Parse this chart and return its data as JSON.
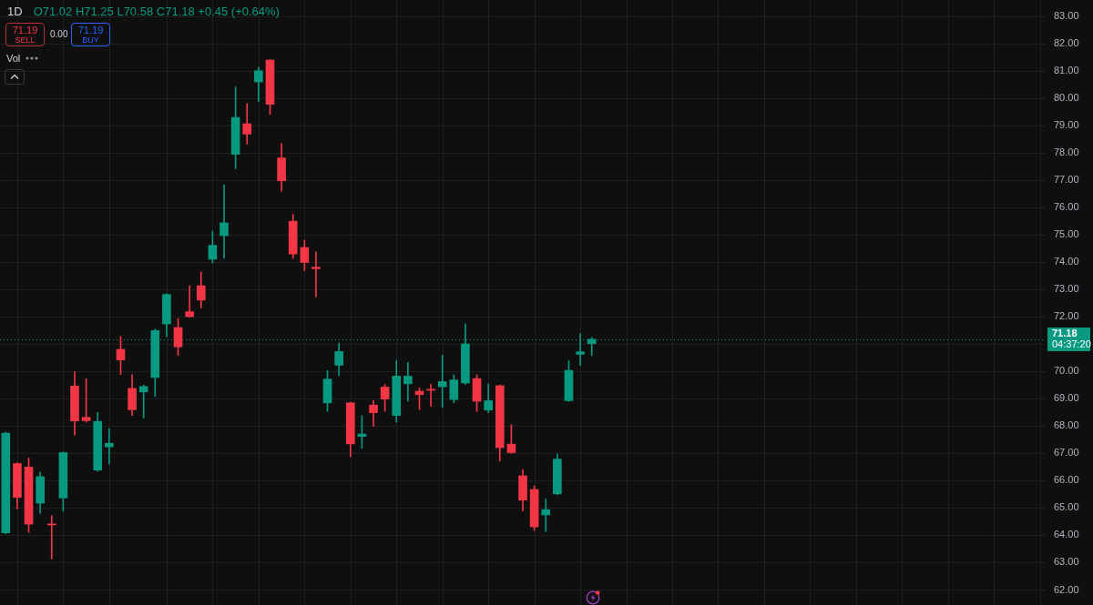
{
  "chart_data": {
    "type": "candlestick",
    "title": "1D",
    "subtitle": "O71.02 H71.25 L70.58 C71.18 +0.45 (+0.64%)",
    "categories": [
      null,
      null,
      null,
      null,
      null,
      null,
      null,
      null,
      null,
      null,
      null,
      null,
      null,
      null,
      null,
      null,
      null,
      null,
      null,
      null,
      null,
      null,
      null,
      null,
      null,
      null,
      null,
      null,
      null,
      null,
      null,
      null,
      null,
      null,
      null,
      null,
      null,
      null,
      null,
      null,
      null,
      null,
      null,
      null,
      null,
      null,
      null,
      null,
      null,
      null,
      null,
      null,
      null,
      null,
      null,
      null,
      null,
      null,
      null,
      null,
      null,
      null,
      null,
      null,
      null,
      null,
      null,
      null,
      null,
      null,
      null,
      null,
      null,
      null,
      null,
      null,
      null,
      null,
      null,
      null,
      null,
      null,
      null,
      null,
      null,
      null,
      null,
      null,
      null,
      null,
      null
    ],
    "ohlc": [
      [
        64.09,
        67.78,
        64.05,
        67.74
      ],
      [
        66.63,
        66.66,
        64.97,
        65.39
      ],
      [
        66.5,
        66.83,
        64.11,
        64.41
      ],
      [
        65.18,
        66.31,
        64.81,
        66.15
      ],
      [
        64.42,
        64.72,
        63.14,
        64.38
      ],
      [
        65.37,
        67.05,
        64.89,
        67.03
      ],
      [
        69.47,
        69.99,
        67.67,
        68.19
      ],
      [
        68.32,
        69.74,
        68.14,
        68.2
      ],
      [
        66.39,
        68.5,
        66.35,
        68.17
      ],
      [
        67.24,
        67.91,
        66.61,
        67.37
      ],
      [
        70.81,
        71.28,
        69.89,
        70.42
      ],
      [
        69.38,
        69.88,
        68.39,
        68.6
      ],
      [
        69.25,
        69.5,
        68.3,
        69.45
      ],
      [
        69.78,
        71.55,
        69.08,
        71.5
      ],
      [
        71.74,
        72.85,
        71.27,
        72.82
      ],
      [
        71.61,
        71.94,
        70.59,
        70.9
      ],
      [
        72.19,
        73.14,
        71.98,
        72.01
      ],
      [
        73.14,
        73.64,
        72.32,
        72.61
      ],
      [
        74.11,
        75.14,
        73.97,
        74.62
      ],
      [
        74.97,
        76.83,
        74.14,
        75.44
      ],
      [
        77.95,
        80.41,
        77.43,
        79.3
      ],
      [
        79.07,
        79.81,
        78.32,
        78.69
      ],
      [
        80.6,
        81.13,
        79.88,
        81.01
      ],
      [
        81.4,
        81.42,
        79.41,
        79.78
      ],
      [
        77.82,
        78.35,
        76.6,
        76.98
      ],
      [
        75.5,
        75.75,
        74.14,
        74.3
      ],
      [
        74.54,
        74.81,
        73.69,
        73.99
      ],
      [
        73.82,
        74.38,
        72.74,
        73.76
      ],
      [
        68.85,
        70.03,
        68.54,
        69.72
      ],
      [
        70.23,
        71.04,
        69.85,
        70.73
      ],
      [
        68.85,
        68.87,
        66.88,
        67.35
      ],
      [
        67.62,
        68.38,
        67.19,
        67.71
      ],
      [
        68.77,
        68.93,
        67.99,
        68.49
      ],
      [
        69.43,
        69.53,
        68.54,
        68.99
      ],
      [
        68.39,
        70.41,
        68.14,
        69.83
      ],
      [
        69.55,
        70.33,
        68.91,
        69.83
      ],
      [
        69.28,
        69.4,
        68.6,
        69.15
      ],
      [
        69.35,
        69.53,
        68.72,
        69.31
      ],
      [
        69.44,
        70.6,
        68.68,
        69.63
      ],
      [
        68.97,
        69.88,
        68.85,
        69.69
      ],
      [
        69.58,
        71.74,
        69.52,
        71.01
      ],
      [
        69.74,
        69.88,
        68.53,
        68.91
      ],
      [
        68.59,
        69.54,
        68.49,
        68.93
      ],
      [
        69.48,
        69.5,
        66.72,
        67.21
      ],
      [
        67.34,
        68.05,
        67.0,
        67.03
      ],
      [
        66.18,
        66.41,
        64.89,
        65.29
      ],
      [
        65.68,
        65.81,
        64.18,
        64.31
      ],
      [
        64.75,
        65.33,
        64.14,
        64.94
      ],
      [
        65.52,
        66.98,
        65.48,
        66.79
      ],
      [
        68.93,
        70.39,
        68.9,
        70.04
      ],
      [
        70.63,
        71.38,
        70.22,
        70.72
      ],
      [
        71.02,
        71.25,
        70.58,
        71.18
      ],
      null,
      null,
      null,
      null,
      null,
      null,
      null,
      null,
      null,
      null,
      null,
      null,
      null,
      null,
      null,
      null,
      null,
      null,
      null,
      null,
      null,
      null,
      null,
      null,
      null,
      null,
      null,
      null,
      null,
      null,
      null,
      null,
      null,
      null,
      null,
      null,
      null,
      null,
      null
    ],
    "colors": [
      "#089981",
      "#f23645",
      "#f23645",
      "#089981",
      "#f23645",
      "#089981",
      "#f23645",
      "#f23645",
      "#089981",
      "#089981",
      "#f23645",
      "#f23645",
      "#089981",
      "#089981",
      "#089981",
      "#f23645",
      "#f23645",
      "#f23645",
      "#089981",
      "#089981",
      "#089981",
      "#f23645",
      "#089981",
      "#f23645",
      "#f23645",
      "#f23645",
      "#f23645",
      "#f23645",
      "#089981",
      "#089981",
      "#f23645",
      "#089981",
      "#f23645",
      "#f23645",
      "#089981",
      "#089981",
      "#f23645",
      "#f23645",
      "#089981",
      "#089981",
      "#089981",
      "#f23645",
      "#089981",
      "#f23645",
      "#f23645",
      "#f23645",
      "#f23645",
      "#089981",
      "#089981",
      "#089981",
      "#089981",
      "#089981",
      null,
      null,
      null,
      null,
      null,
      null,
      null,
      null,
      null,
      null,
      null,
      null,
      null,
      null,
      null,
      null,
      null,
      null,
      null,
      null,
      null,
      null,
      null,
      null,
      null,
      null,
      null,
      null,
      null,
      null,
      null,
      null,
      null,
      null,
      null,
      null,
      null,
      null,
      null
    ],
    "ylim": [
      61.45,
      83.6
    ],
    "yticks": [
      {
        "value": 62,
        "label": "62.00"
      },
      {
        "value": 63,
        "label": "63.00"
      },
      {
        "value": 64,
        "label": "64.00"
      },
      {
        "value": 65,
        "label": "65.00"
      },
      {
        "value": 66,
        "label": "66.00"
      },
      {
        "value": 67,
        "label": "67.00"
      },
      {
        "value": 68,
        "label": "68.00"
      },
      {
        "value": 69,
        "label": "69.00"
      },
      {
        "value": 70,
        "label": "70.00"
      },
      {
        "value": 71,
        "label": null
      },
      {
        "value": 72,
        "label": "72.00"
      },
      {
        "value": 73,
        "label": "73.00"
      },
      {
        "value": 74,
        "label": "74.00"
      },
      {
        "value": 75,
        "label": "75.00"
      },
      {
        "value": 76,
        "label": "76.00"
      },
      {
        "value": 77,
        "label": "77.00"
      },
      {
        "value": 78,
        "label": "78.00"
      },
      {
        "value": 79,
        "label": "79.00"
      },
      {
        "value": 80,
        "label": "80.00"
      },
      {
        "value": 81,
        "label": "81.00"
      },
      {
        "value": 82,
        "label": "82.00"
      },
      {
        "value": 83,
        "label": "83.00"
      }
    ],
    "grid": true,
    "tick_labels": "y",
    "ref_lines": [
      {
        "axis": "y",
        "value": 71.18,
        "label": "71.18",
        "color": "#089981",
        "line_style": "dotted"
      }
    ],
    "annotations": [
      "71.19",
      "SELL",
      "0.00",
      "71.19",
      "BUY",
      "Vol",
      "04:37:20"
    ]
  }
}
